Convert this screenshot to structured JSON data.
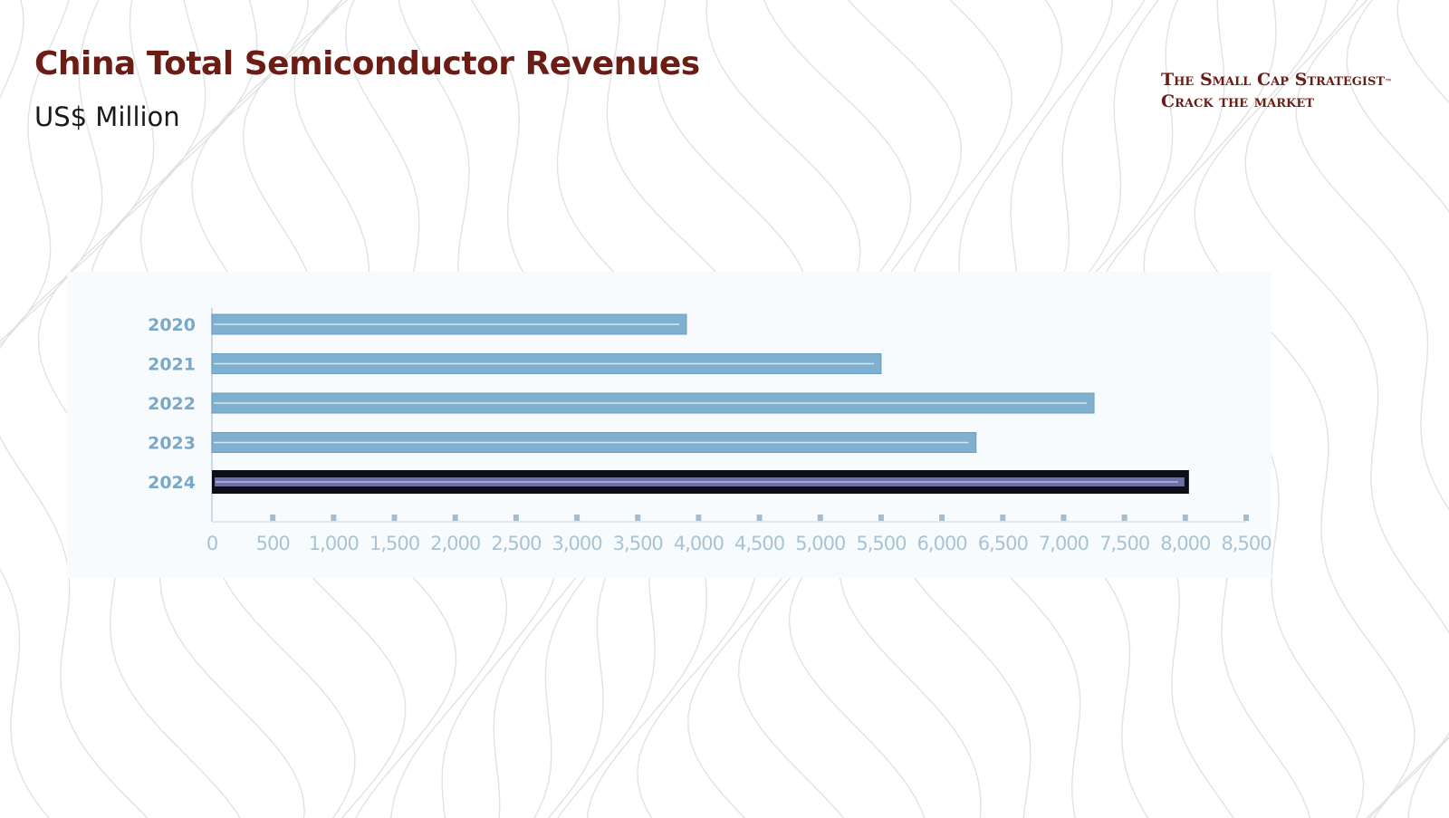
{
  "header": {
    "title": "China Total Semiconductor Revenues",
    "subtitle": "US$ Million"
  },
  "brand": {
    "line1": "The Small Cap Strategist",
    "trademark": "™",
    "line2": "Crack the market",
    "color": "#6b1c14"
  },
  "colors": {
    "bar": "#7fb0cf",
    "bar_highlight_fill": "#6f6fa8",
    "bar_highlight_edge": "#0d0d1a",
    "axis_label": "#79a9c7",
    "tick_label": "#a9c3d4"
  },
  "chart_data": {
    "type": "bar",
    "orientation": "horizontal",
    "title": "China Total Semiconductor Revenues",
    "ylabel": "US$ Million",
    "xlabel": "",
    "categories": [
      "2020",
      "2021",
      "2022",
      "2023",
      "2024"
    ],
    "values": [
      3900,
      5500,
      7250,
      6280,
      8030
    ],
    "highlight": "2024",
    "xlim": [
      0,
      8500
    ],
    "ticks": [
      0,
      500,
      1000,
      1500,
      2000,
      2500,
      3000,
      3500,
      4000,
      4500,
      5000,
      5500,
      6000,
      6500,
      7000,
      7500,
      8000,
      8500
    ],
    "tick_labels": [
      "0",
      "500",
      "1,000",
      "1,500",
      "2,000",
      "2,500",
      "3,000",
      "3,500",
      "4,000",
      "4,500",
      "5,000",
      "5,500",
      "6,000",
      "6,500",
      "7,000",
      "7,500",
      "8,000",
      "8,500"
    ],
    "grid": false
  }
}
